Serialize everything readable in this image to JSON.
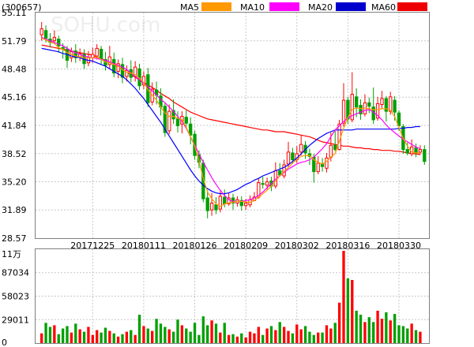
{
  "header": {
    "code": "(300657)",
    "watermark": "SOHU.com"
  },
  "legend": [
    {
      "label": "MA5",
      "color": "#ff9900"
    },
    {
      "label": "MA10",
      "color": "#ff00ff"
    },
    {
      "label": "MA20",
      "color": "#0000ff"
    },
    {
      "label": "MA60",
      "color": "#ff0000"
    }
  ],
  "colors": {
    "up": "#ff0000",
    "down": "#00a000",
    "grid": "#c8c8c8",
    "axis": "#808080"
  },
  "chart_data": [
    {
      "type": "candlestick",
      "ylim": [
        28.57,
        55.11
      ],
      "y_ticks": [
        "55.11",
        "51.79",
        "48.48",
        "45.16",
        "41.84",
        "38.52",
        "35.20",
        "31.89",
        "28.57"
      ],
      "x_tick_labels": [
        "20171225",
        "20180111",
        "20180126",
        "20180209",
        "20180302",
        "20180316",
        "20180330"
      ],
      "x_tick_index": [
        12,
        24,
        36,
        48,
        60,
        72,
        84
      ],
      "candles": [
        [
          52.5,
          53.2,
          54.0,
          51.8
        ],
        [
          53.0,
          52.1,
          53.6,
          51.6
        ],
        [
          52.0,
          51.6,
          52.7,
          51.0
        ],
        [
          51.8,
          52.2,
          53.0,
          51.4
        ],
        [
          52.0,
          51.2,
          52.4,
          50.4
        ],
        [
          51.0,
          50.9,
          51.5,
          49.7
        ],
        [
          50.8,
          49.5,
          51.2,
          48.6
        ],
        [
          49.8,
          50.5,
          51.0,
          49.3
        ],
        [
          50.6,
          49.8,
          51.4,
          49.2
        ],
        [
          49.9,
          50.3,
          50.9,
          49.4
        ],
        [
          50.2,
          49.1,
          50.8,
          48.5
        ],
        [
          49.2,
          49.8,
          50.6,
          48.8
        ],
        [
          49.8,
          50.2,
          51.0,
          49.2
        ],
        [
          50.0,
          50.9,
          51.4,
          49.6
        ],
        [
          50.8,
          49.7,
          51.2,
          49.0
        ],
        [
          49.6,
          48.9,
          50.5,
          48.3
        ],
        [
          49.0,
          49.9,
          51.2,
          48.5
        ],
        [
          49.6,
          48.0,
          50.4,
          47.5
        ],
        [
          48.2,
          49.1,
          49.6,
          47.4
        ],
        [
          49.0,
          47.5,
          49.8,
          46.8
        ],
        [
          47.6,
          48.3,
          48.9,
          47.0
        ],
        [
          48.4,
          47.5,
          49.5,
          46.9
        ],
        [
          47.6,
          48.7,
          49.4,
          47.0
        ],
        [
          48.5,
          46.5,
          49.1,
          46.0
        ],
        [
          46.6,
          47.6,
          48.2,
          46.1
        ],
        [
          47.8,
          44.5,
          48.6,
          44.0
        ],
        [
          44.6,
          46.1,
          46.9,
          44.2
        ],
        [
          46.0,
          45.4,
          47.0,
          44.3
        ],
        [
          45.3,
          44.0,
          46.2,
          43.0
        ],
        [
          44.1,
          41.0,
          44.5,
          40.5
        ],
        [
          41.2,
          43.5,
          44.3,
          40.8
        ],
        [
          43.6,
          42.6,
          44.9,
          42.0
        ],
        [
          42.6,
          41.8,
          43.5,
          41.0
        ],
        [
          42.0,
          42.9,
          43.5,
          40.9
        ],
        [
          42.8,
          42.1,
          43.6,
          41.5
        ],
        [
          42.0,
          40.7,
          42.8,
          39.6
        ],
        [
          40.8,
          38.3,
          41.2,
          37.8
        ],
        [
          38.4,
          37.5,
          38.9,
          36.8
        ],
        [
          37.4,
          33.2,
          37.8,
          32.8
        ],
        [
          33.3,
          31.8,
          34.2,
          30.9
        ],
        [
          31.9,
          32.7,
          33.9,
          31.2
        ],
        [
          32.5,
          31.9,
          33.4,
          31.4
        ],
        [
          32.0,
          33.5,
          34.1,
          31.6
        ],
        [
          33.4,
          32.6,
          34.3,
          32.2
        ],
        [
          32.6,
          33.3,
          33.9,
          32.4
        ],
        [
          33.3,
          32.7,
          33.8,
          31.9
        ],
        [
          32.7,
          33.1,
          33.5,
          32.3
        ],
        [
          33.0,
          32.4,
          33.5,
          31.8
        ],
        [
          32.4,
          32.7,
          33.2,
          31.9
        ],
        [
          32.5,
          33.1,
          33.6,
          32.2
        ],
        [
          33.0,
          33.4,
          34.0,
          32.9
        ],
        [
          33.4,
          35.1,
          35.6,
          33.2
        ],
        [
          35.0,
          34.9,
          35.8,
          34.4
        ],
        [
          34.8,
          35.2,
          35.7,
          34.3
        ],
        [
          35.3,
          34.7,
          35.8,
          34.1
        ],
        [
          34.7,
          36.5,
          37.5,
          34.4
        ],
        [
          36.5,
          36.0,
          37.4,
          35.8
        ],
        [
          35.9,
          37.2,
          37.8,
          35.6
        ],
        [
          37.3,
          38.7,
          39.9,
          36.9
        ],
        [
          38.6,
          37.8,
          39.2,
          37.3
        ],
        [
          37.8,
          38.5,
          39.4,
          37.4
        ],
        [
          38.7,
          39.6,
          40.7,
          38.3
        ],
        [
          39.5,
          38.6,
          40.0,
          37.9
        ],
        [
          38.5,
          38.2,
          39.1,
          37.2
        ],
        [
          38.1,
          36.4,
          38.5,
          35.1
        ],
        [
          36.4,
          37.4,
          38.2,
          36.1
        ],
        [
          37.3,
          37.0,
          38.0,
          36.4
        ],
        [
          36.8,
          38.0,
          38.6,
          36.3
        ],
        [
          38.1,
          39.5,
          41.0,
          37.6
        ],
        [
          39.5,
          39.0,
          41.2,
          38.8
        ],
        [
          39.0,
          42.0,
          42.5,
          38.9
        ],
        [
          42.1,
          44.8,
          46.8,
          41.7
        ],
        [
          44.8,
          42.6,
          45.2,
          42.0
        ],
        [
          42.5,
          45.5,
          48.1,
          42.2
        ],
        [
          45.2,
          44.0,
          46.2,
          42.8
        ],
        [
          44.2,
          43.2,
          44.9,
          42.5
        ],
        [
          43.2,
          44.5,
          45.5,
          42.9
        ],
        [
          44.5,
          44.1,
          45.1,
          43.3
        ],
        [
          44.0,
          42.5,
          46.3,
          42.0
        ],
        [
          42.7,
          44.4,
          45.2,
          42.4
        ],
        [
          44.3,
          45.0,
          45.9,
          43.8
        ],
        [
          45.0,
          43.5,
          45.3,
          42.3
        ],
        [
          43.5,
          45.2,
          45.8,
          43.1
        ],
        [
          44.8,
          43.4,
          45.3,
          42.4
        ],
        [
          43.3,
          41.8,
          43.6,
          41.2
        ],
        [
          41.7,
          39.0,
          42.0,
          38.5
        ],
        [
          39.0,
          38.6,
          39.8,
          38.3
        ],
        [
          38.5,
          39.3,
          40.2,
          38.2
        ],
        [
          39.2,
          38.6,
          39.7,
          38.1
        ],
        [
          38.7,
          39.0,
          39.5,
          38.4
        ],
        [
          39.0,
          37.6,
          39.5,
          37.2
        ]
      ],
      "ma5": [
        52.1,
        51.9,
        51.6,
        51.5,
        51.0,
        50.8,
        50.4,
        50.2,
        50.0,
        49.9,
        49.8,
        49.8,
        49.8,
        49.9,
        49.6,
        49.3,
        49.2,
        49.0,
        48.8,
        48.4,
        48.1,
        48.0,
        47.8,
        47.4,
        46.9,
        46.0,
        45.4,
        44.8,
        44.0,
        43.3,
        42.9,
        42.9,
        42.7,
        42.5,
        41.6,
        40.5,
        39.4,
        37.7,
        35.6,
        34.0,
        33.2,
        32.6,
        32.3,
        32.6,
        32.7,
        32.8,
        32.9,
        32.9,
        32.8,
        32.8,
        33.0,
        33.4,
        33.8,
        34.2,
        34.7,
        35.3,
        35.9,
        36.4,
        36.9,
        37.4,
        37.8,
        38.2,
        38.3,
        38.3,
        37.8,
        37.5,
        37.3,
        37.6,
        38.1,
        38.5,
        40.0,
        41.5,
        42.8,
        43.7,
        43.9,
        43.8,
        43.9,
        43.8,
        43.7,
        43.7,
        43.8,
        43.8,
        43.6,
        42.9,
        41.6,
        40.3,
        39.4,
        38.7,
        38.6,
        38.6
      ],
      "ma10": [
        52.2,
        52.0,
        51.8,
        51.6,
        51.4,
        51.2,
        50.9,
        50.6,
        50.4,
        50.2,
        50.0,
        49.9,
        49.8,
        49.7,
        49.6,
        49.5,
        49.3,
        49.1,
        48.9,
        48.7,
        48.4,
        48.0,
        47.6,
        47.2,
        46.8,
        46.4,
        45.9,
        45.4,
        44.9,
        44.5,
        44.0,
        43.5,
        42.9,
        42.3,
        41.5,
        40.5,
        39.5,
        38.5,
        37.5,
        36.6,
        35.7,
        34.9,
        34.2,
        33.6,
        33.1,
        32.9,
        32.9,
        32.9,
        33.0,
        33.1,
        33.3,
        33.6,
        34.0,
        34.5,
        35.0,
        35.5,
        35.9,
        36.3,
        36.7,
        37.0,
        37.3,
        37.5,
        37.6,
        37.8,
        38.1,
        38.6,
        39.1,
        39.7,
        40.5,
        41.3,
        41.8,
        42.3,
        42.7,
        43.0,
        43.2,
        43.4,
        43.6,
        43.7,
        43.4,
        43.0,
        42.5,
        41.9,
        41.4,
        41.0,
        40.6,
        40.2,
        39.9,
        39.6,
        39.3,
        39.1
      ],
      "ma20": [
        50.9,
        50.8,
        50.7,
        50.6,
        50.5,
        50.3,
        50.2,
        50.0,
        49.9,
        49.8,
        49.6,
        49.5,
        49.4,
        49.2,
        49.0,
        48.8,
        48.5,
        48.2,
        47.9,
        47.6,
        47.2,
        46.7,
        46.2,
        45.6,
        45.0,
        44.3,
        43.6,
        42.9,
        42.2,
        41.4,
        40.6,
        39.8,
        39.0,
        38.2,
        37.4,
        36.6,
        35.9,
        35.3,
        34.8,
        34.4,
        34.1,
        33.9,
        33.8,
        33.8,
        33.9,
        34.1,
        34.3,
        34.6,
        34.9,
        35.1,
        35.4,
        35.6,
        35.9,
        36.1,
        36.3,
        36.5,
        36.7,
        36.9,
        37.2,
        37.6,
        38.0,
        38.5,
        39.0,
        39.5,
        39.9,
        40.3,
        40.6,
        40.9,
        41.1,
        41.3,
        41.3,
        41.3,
        41.3,
        41.3,
        41.4,
        41.4,
        41.4,
        41.4,
        41.4,
        41.4,
        41.4,
        41.4,
        41.4,
        41.4,
        41.5,
        41.5,
        41.6,
        41.6,
        41.7,
        41.7
      ],
      "ma60": [
        51.3,
        51.2,
        51.1,
        51.0,
        50.9,
        50.8,
        50.7,
        50.6,
        50.5,
        50.4,
        50.3,
        50.2,
        50.1,
        49.9,
        49.7,
        49.5,
        49.3,
        49.0,
        48.7,
        48.4,
        48.1,
        47.8,
        47.5,
        47.2,
        46.9,
        46.6,
        46.3,
        46.0,
        45.6,
        45.3,
        45.0,
        44.6,
        44.3,
        44.0,
        43.7,
        43.4,
        43.2,
        43.0,
        42.8,
        42.6,
        42.5,
        42.4,
        42.3,
        42.2,
        42.1,
        42.0,
        41.9,
        41.8,
        41.7,
        41.6,
        41.5,
        41.4,
        41.3,
        41.3,
        41.2,
        41.1,
        41.1,
        41.1,
        41.0,
        40.9,
        40.8,
        40.7,
        40.6,
        40.5,
        40.3,
        40.1,
        39.9,
        39.8,
        39.7,
        39.6,
        39.5,
        39.4,
        39.4,
        39.3,
        39.2,
        39.2,
        39.1,
        39.1,
        39.0,
        39.0,
        38.9,
        38.9,
        38.9,
        38.8,
        38.8,
        38.7,
        38.6,
        38.5,
        38.5,
        38.4
      ]
    },
    {
      "type": "bar",
      "unit": "11万",
      "ylim": [
        0,
        116045
      ],
      "y_ticks": [
        "87034",
        "58023",
        "29011",
        "0"
      ],
      "volumes": [
        12000,
        25000,
        20000,
        22000,
        11000,
        18000,
        21000,
        13000,
        24000,
        17000,
        14000,
        20000,
        10000,
        16000,
        13000,
        19000,
        15000,
        12000,
        8000,
        11000,
        14000,
        16000,
        10000,
        35000,
        21000,
        18000,
        15000,
        30000,
        24000,
        20000,
        17000,
        14000,
        29000,
        22000,
        18000,
        14000,
        25000,
        10000,
        33000,
        22000,
        28000,
        24000,
        13000,
        25000,
        10000,
        11000,
        8000,
        12000,
        7000,
        14000,
        12000,
        20000,
        10000,
        18000,
        21000,
        16000,
        26000,
        20000,
        15000,
        12000,
        23000,
        17000,
        21000,
        14000,
        10000,
        13000,
        13000,
        22000,
        18000,
        25000,
        50000,
        114000,
        80000,
        78000,
        40000,
        35000,
        26000,
        32000,
        26000,
        40000,
        30000,
        38000,
        28000,
        36000,
        22000,
        21000,
        18000,
        24000,
        16000,
        14000
      ]
    }
  ]
}
